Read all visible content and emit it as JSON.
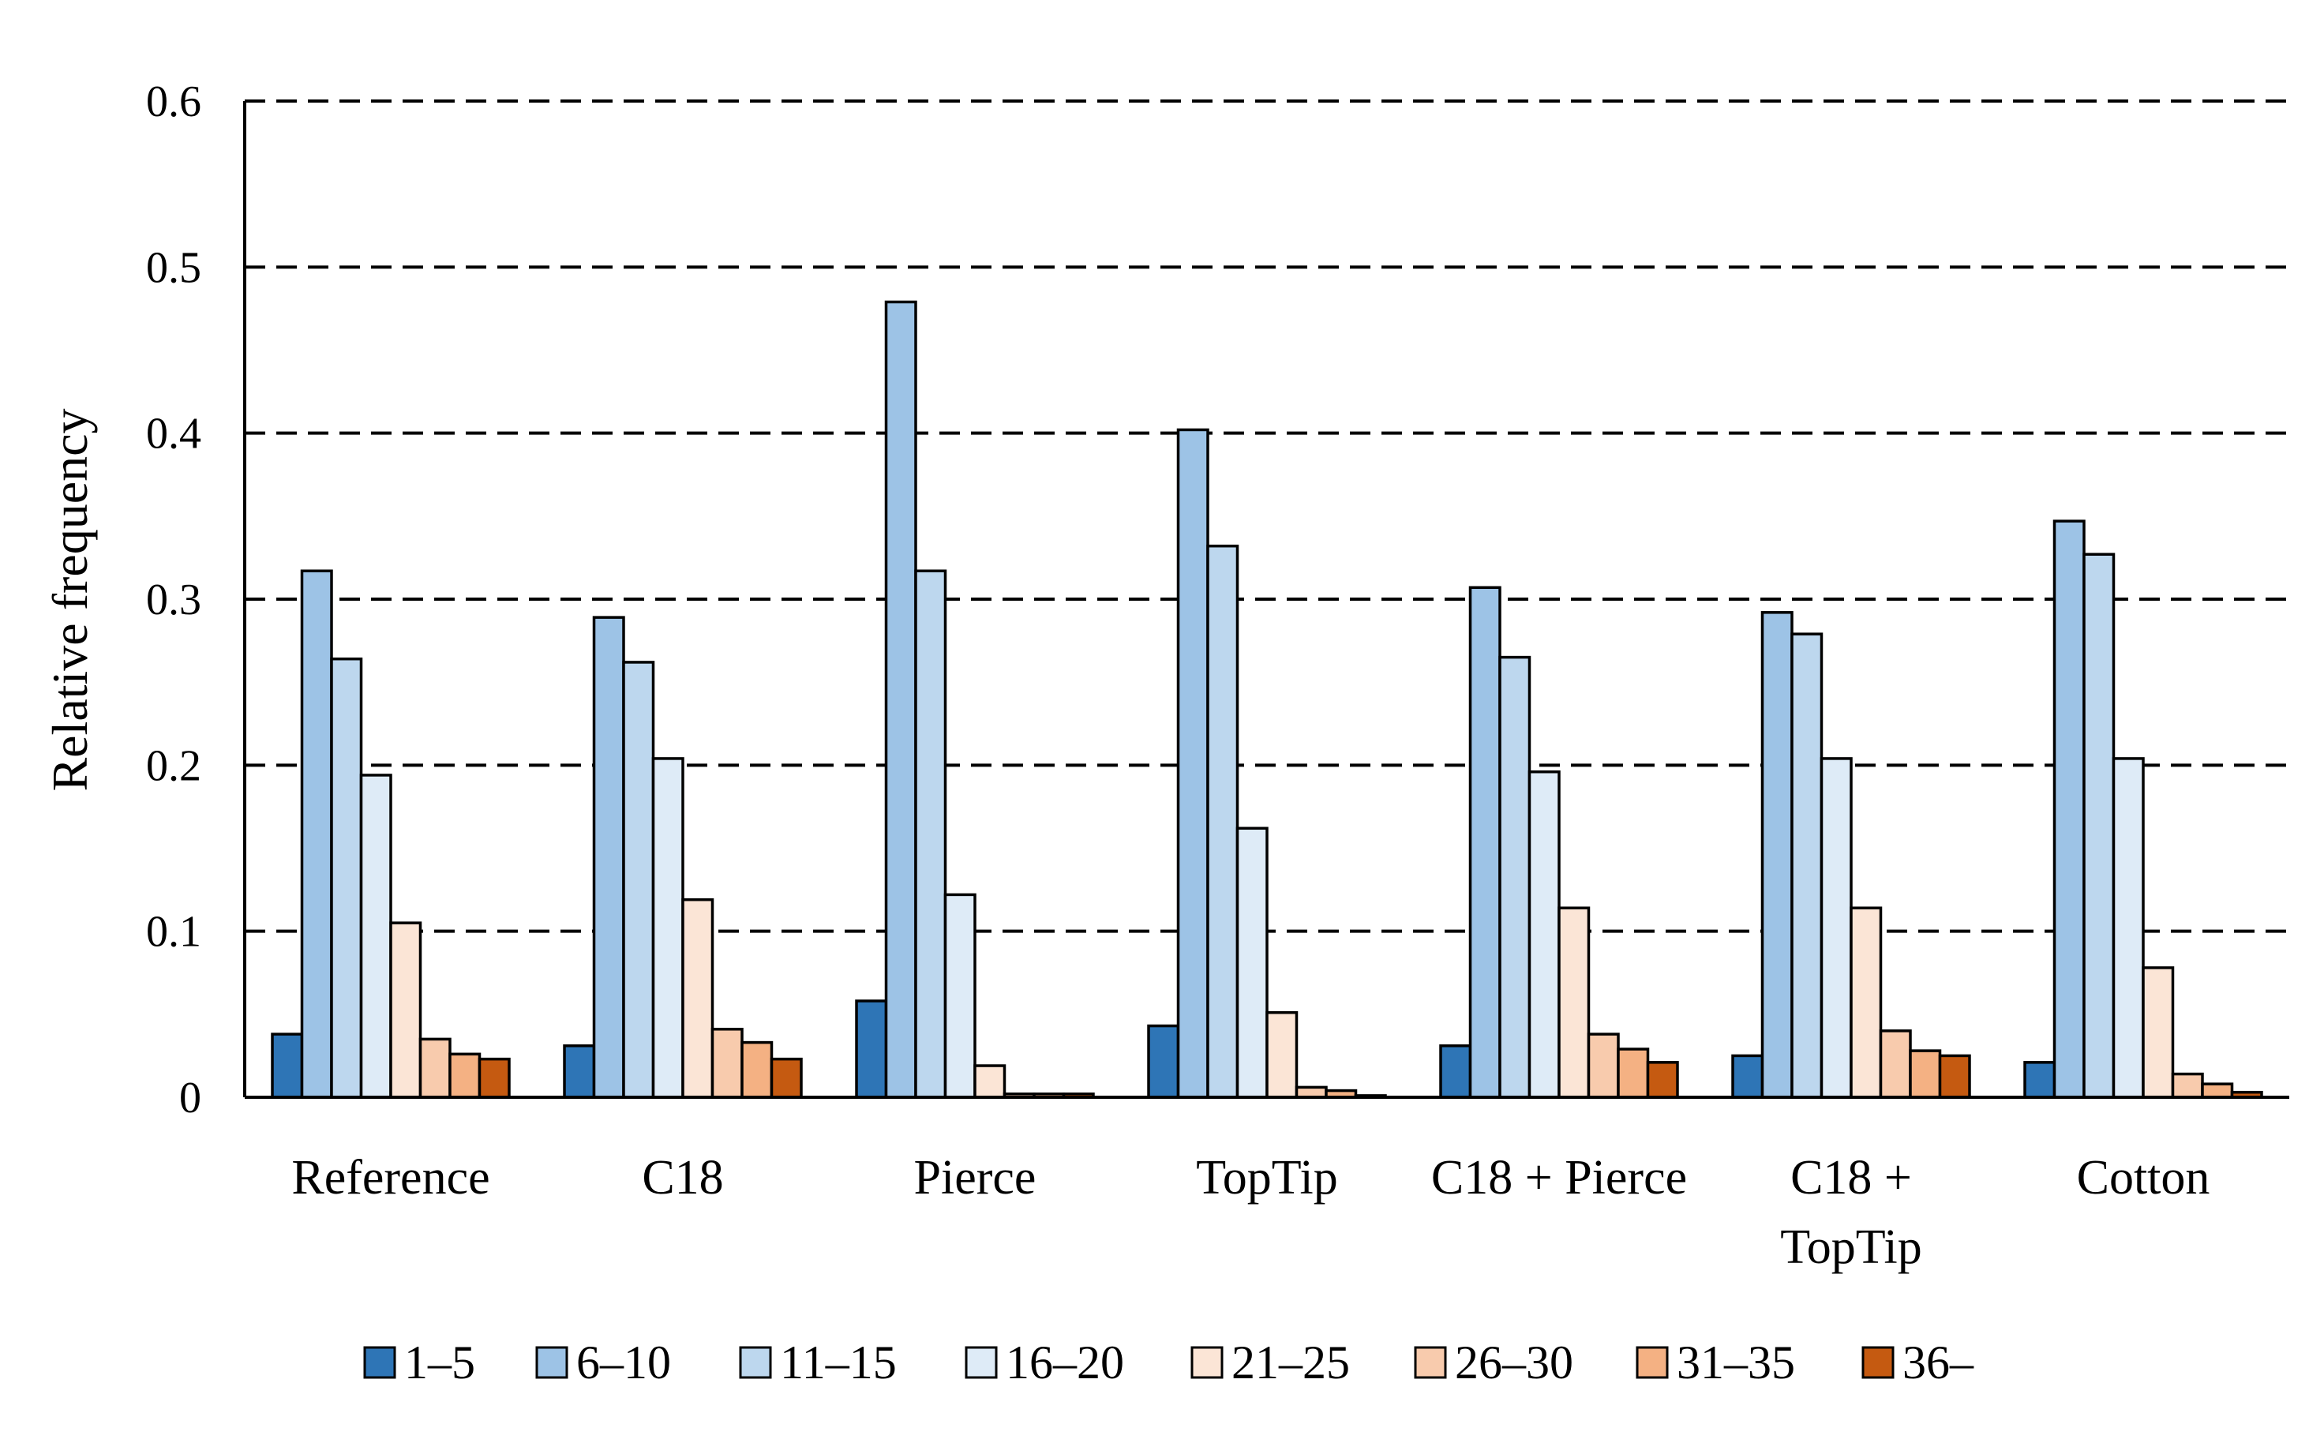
{
  "chart_data": {
    "type": "bar",
    "title": "",
    "xlabel": "",
    "ylabel": "Relative frequency",
    "ylim": [
      0,
      0.6
    ],
    "yticks": [
      "0",
      "0.1",
      "0.2",
      "0.3",
      "0.4",
      "0.5",
      "0.6"
    ],
    "grid": true,
    "legend_position": "bottom",
    "categories": [
      [
        "Reference"
      ],
      [
        "C18"
      ],
      [
        "Pierce"
      ],
      [
        "TopTip"
      ],
      [
        "C18 + Pierce"
      ],
      [
        "C18 +",
        "TopTip"
      ],
      [
        "Cotton"
      ]
    ],
    "series": [
      {
        "name": "1–5",
        "color": "#2e75b6",
        "values": [
          0.038,
          0.031,
          0.058,
          0.043,
          0.031,
          0.025,
          0.021
        ]
      },
      {
        "name": "6–10",
        "color": "#9dc3e6",
        "values": [
          0.317,
          0.289,
          0.479,
          0.402,
          0.307,
          0.292,
          0.347
        ]
      },
      {
        "name": "11–15",
        "color": "#bdd7ee",
        "values": [
          0.264,
          0.262,
          0.317,
          0.332,
          0.265,
          0.279,
          0.327
        ]
      },
      {
        "name": "16–20",
        "color": "#deebf7",
        "values": [
          0.194,
          0.204,
          0.122,
          0.162,
          0.196,
          0.204,
          0.204
        ]
      },
      {
        "name": "21–25",
        "color": "#fbe5d6",
        "values": [
          0.105,
          0.119,
          0.019,
          0.051,
          0.114,
          0.114,
          0.078
        ]
      },
      {
        "name": "26–30",
        "color": "#f8cbad",
        "values": [
          0.035,
          0.041,
          0.002,
          0.006,
          0.038,
          0.04,
          0.014
        ]
      },
      {
        "name": "31–35",
        "color": "#f4b183",
        "values": [
          0.026,
          0.033,
          0.002,
          0.004,
          0.029,
          0.028,
          0.008
        ]
      },
      {
        "name": "36–",
        "color": "#c55a11",
        "values": [
          0.023,
          0.023,
          0.002,
          0.001,
          0.021,
          0.025,
          0.003
        ]
      }
    ]
  }
}
